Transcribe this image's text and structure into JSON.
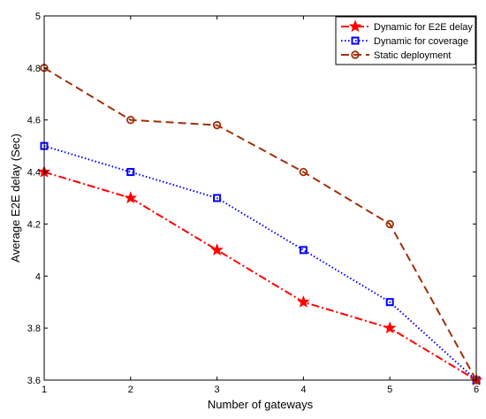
{
  "chart_data": {
    "type": "line",
    "xlabel": "Number of gateways",
    "ylabel": "Average E2E delay (Sec)",
    "x": [
      1,
      2,
      3,
      4,
      5,
      6
    ],
    "xlim": [
      1,
      6
    ],
    "ylim": [
      3.6,
      5.0
    ],
    "xticks": [
      "1",
      "2",
      "3",
      "4",
      "5",
      "6"
    ],
    "yticks": [
      "3.6",
      "3.8",
      "4",
      "4.2",
      "4.4",
      "4.6",
      "4.8",
      "5"
    ],
    "grid": false,
    "legend_position": "top-right",
    "series": [
      {
        "name": "Dynamic for E2E delay",
        "values": [
          4.4,
          4.3,
          4.1,
          3.9,
          3.8,
          3.6
        ],
        "color": "#ff0000",
        "line_style": "dash-dot",
        "marker": "star"
      },
      {
        "name": "Dynamic for coverage",
        "values": [
          4.5,
          4.4,
          4.3,
          4.1,
          3.9,
          3.6
        ],
        "color": "#0000ff",
        "line_style": "dotted",
        "marker": "square"
      },
      {
        "name": "Static deployment",
        "values": [
          4.8,
          4.6,
          4.58,
          4.4,
          4.2,
          3.6
        ],
        "color": "#a0300a",
        "line_style": "dashed",
        "marker": "circle"
      }
    ]
  }
}
